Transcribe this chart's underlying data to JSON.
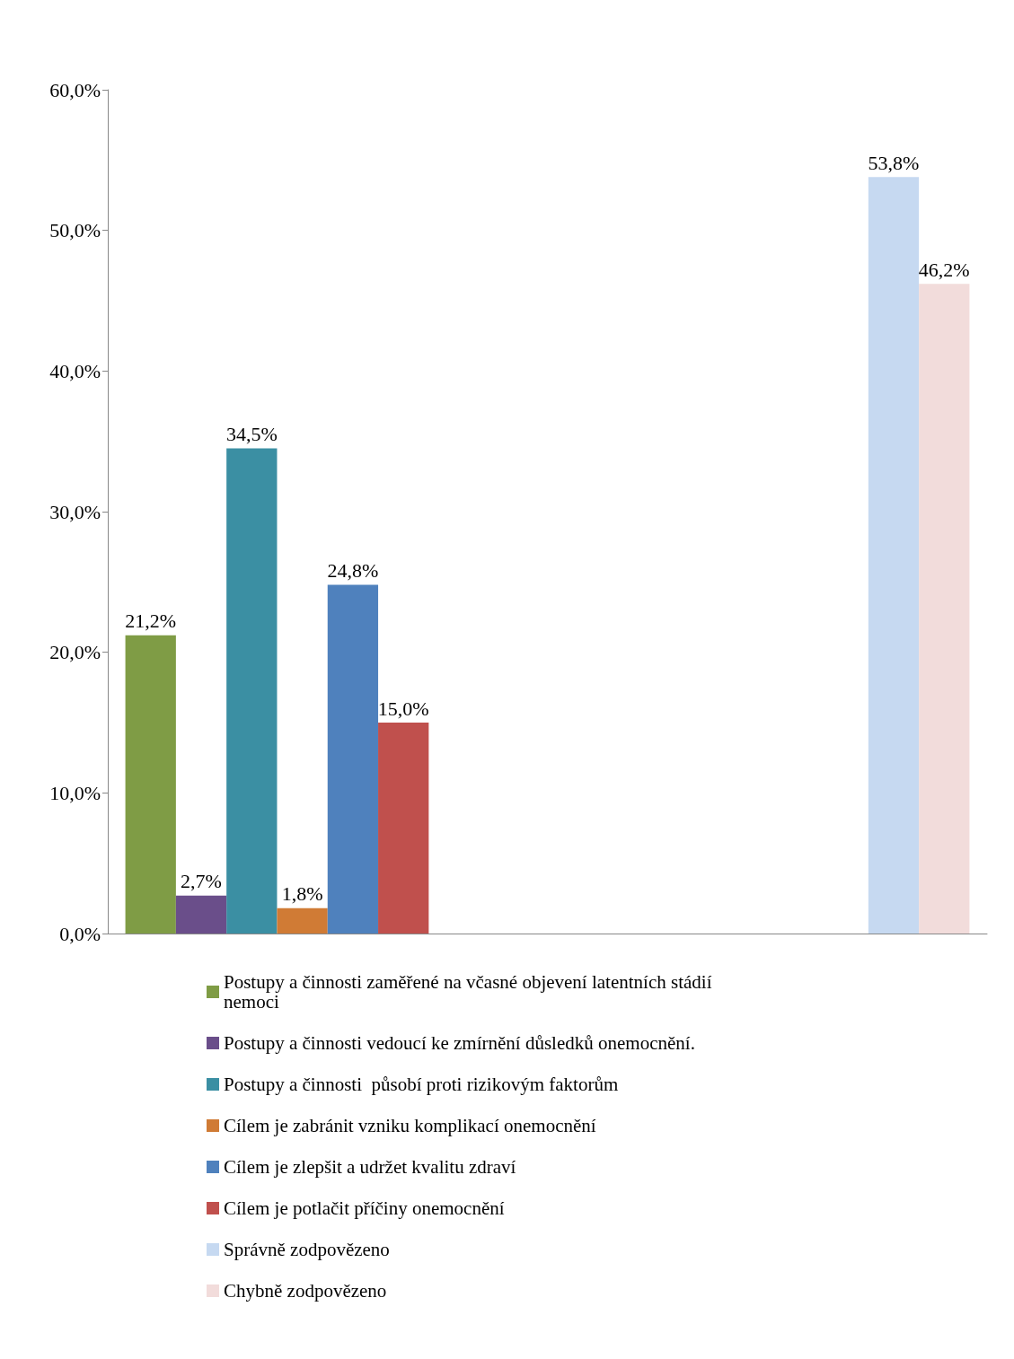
{
  "chart_data": {
    "type": "bar",
    "categories": [
      null,
      null
    ],
    "series": [
      {
        "name": "Postupy a činnosti zaměřené na včasné objevení latentních stádií nemoci",
        "color": "#7f9c45",
        "values": [
          21.2,
          null
        ],
        "value_labels": [
          "21,2%",
          null
        ]
      },
      {
        "name": "Postupy a činnosti vedoucí ke zmírnění důsledků onemocnění.",
        "color": "#6a4e8a",
        "values": [
          2.7,
          null
        ],
        "value_labels": [
          "2,7%",
          null
        ]
      },
      {
        "name": "Postupy a činnosti  působí proti rizikovým faktorům",
        "color": "#3b8fa3",
        "values": [
          34.5,
          null
        ],
        "value_labels": [
          "34,5%",
          null
        ]
      },
      {
        "name": "Cílem je zabránit vzniku komplikací onemocnění",
        "color": "#d07b35",
        "values": [
          1.8,
          null
        ],
        "value_labels": [
          "1,8%",
          null
        ]
      },
      {
        "name": "Cílem je zlepšit a udržet kvalitu zdraví",
        "color": "#4f81bd",
        "values": [
          24.8,
          null
        ],
        "value_labels": [
          "24,8%",
          null
        ]
      },
      {
        "name": "Cílem je potlačit příčiny onemocnění",
        "color": "#c0504d",
        "values": [
          15.0,
          null
        ],
        "value_labels": [
          "15,0%",
          null
        ]
      },
      {
        "name": "Správně zodpovězeno",
        "color": "#c6d9f1",
        "values": [
          null,
          53.8
        ],
        "value_labels": [
          null,
          "53,8%"
        ]
      },
      {
        "name": "Chybně zodpovězeno",
        "color": "#f2dcdb",
        "values": [
          null,
          46.2
        ],
        "value_labels": [
          null,
          "46,2%"
        ]
      }
    ],
    "ylim": [
      0,
      60
    ],
    "yticks": [
      {
        "value": 0,
        "label": "0,0%"
      },
      {
        "value": 10,
        "label": "10,0%"
      },
      {
        "value": 20,
        "label": "20,0%"
      },
      {
        "value": 30,
        "label": "30,0%"
      },
      {
        "value": 40,
        "label": "40,0%"
      },
      {
        "value": 50,
        "label": "50,0%"
      },
      {
        "value": 60,
        "label": "60,0%"
      }
    ],
    "legend": "bottom"
  }
}
